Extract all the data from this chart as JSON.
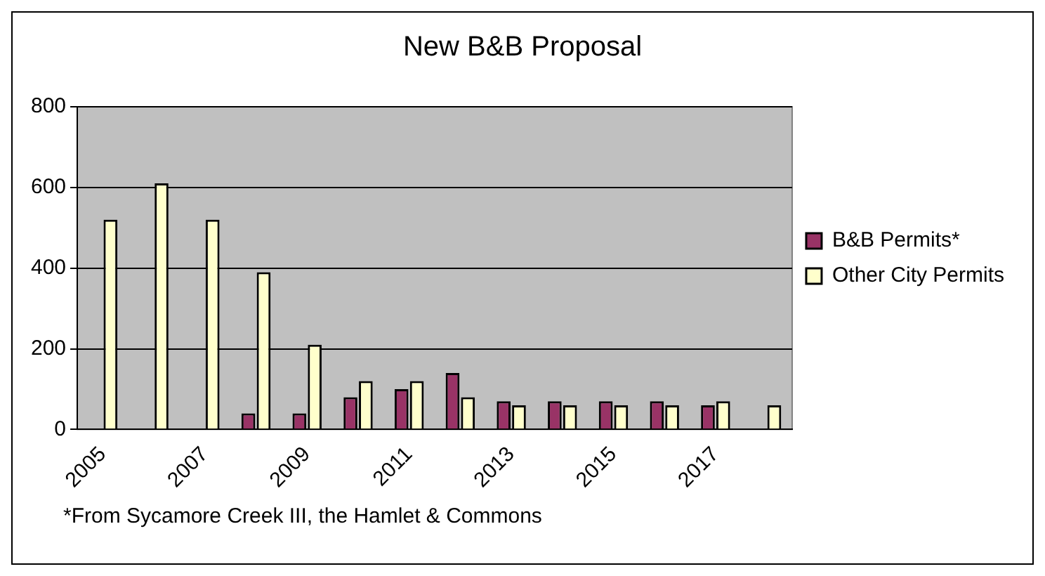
{
  "chart_data": {
    "type": "bar",
    "title": "New B&B Proposal",
    "categories": [
      "2005",
      null,
      "2007",
      null,
      "2009",
      null,
      "2011",
      null,
      "2013",
      null,
      "2015",
      null,
      "2017",
      null
    ],
    "series": [
      {
        "name": "B&B Permits*",
        "color": "#993366",
        "values": [
          null,
          null,
          null,
          40,
          40,
          80,
          100,
          140,
          70,
          70,
          70,
          70,
          60,
          null
        ]
      },
      {
        "name": "Other City Permits",
        "color": "#ffffcc",
        "values": [
          520,
          610,
          520,
          390,
          210,
          120,
          120,
          80,
          60,
          60,
          60,
          60,
          70,
          60
        ]
      }
    ],
    "ylim": [
      0,
      800
    ],
    "yticks": [
      0,
      200,
      400,
      600,
      800
    ],
    "grid": "y",
    "legend": "right",
    "annotations": [
      "*From Sycamore Creek III, the Hamlet & Commons"
    ]
  }
}
